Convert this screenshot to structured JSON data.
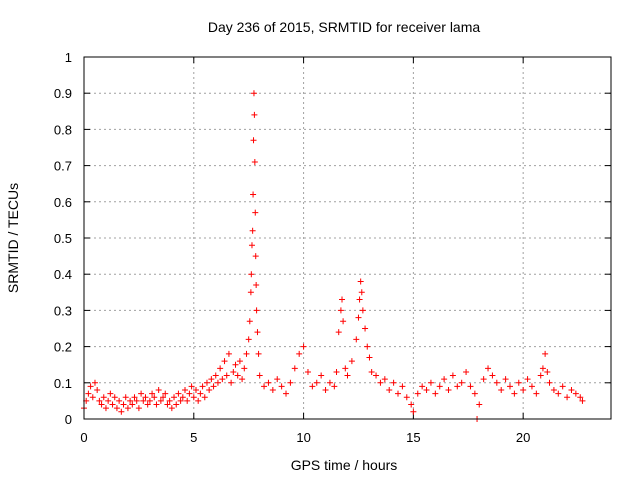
{
  "chart_data": {
    "type": "scatter",
    "title": "Day 236 of 2015, SRMTID for receiver lama",
    "xlabel": "GPS time / hours",
    "ylabel": "SRMTID / TECUs",
    "xlim": [
      0,
      24
    ],
    "ylim": [
      0,
      1
    ],
    "x_ticks": [
      "0",
      "5",
      "10",
      "15",
      "20"
    ],
    "x_tick_values": [
      0,
      5,
      10,
      15,
      20
    ],
    "y_ticks": [
      "0",
      "0.1",
      "0.2",
      "0.3",
      "0.4",
      "0.5",
      "0.6",
      "0.7",
      "0.8",
      "0.9",
      "1"
    ],
    "y_tick_values": [
      0,
      0.1,
      0.2,
      0.3,
      0.4,
      0.5,
      0.6,
      0.7,
      0.8,
      0.9,
      1.0
    ],
    "grid": true,
    "marker": "+",
    "color": "#ff0000",
    "series": [
      {
        "name": "SRMTID",
        "points": [
          [
            0.0,
            0.03
          ],
          [
            0.1,
            0.05
          ],
          [
            0.2,
            0.07
          ],
          [
            0.3,
            0.09
          ],
          [
            0.4,
            0.06
          ],
          [
            0.5,
            0.1
          ],
          [
            0.6,
            0.08
          ],
          [
            0.7,
            0.05
          ],
          [
            0.8,
            0.04
          ],
          [
            0.9,
            0.06
          ],
          [
            1.0,
            0.03
          ],
          [
            1.1,
            0.05
          ],
          [
            1.2,
            0.07
          ],
          [
            1.3,
            0.04
          ],
          [
            1.4,
            0.06
          ],
          [
            1.5,
            0.03
          ],
          [
            1.6,
            0.05
          ],
          [
            1.7,
            0.02
          ],
          [
            1.8,
            0.04
          ],
          [
            1.9,
            0.06
          ],
          [
            2.0,
            0.03
          ],
          [
            2.1,
            0.05
          ],
          [
            2.2,
            0.04
          ],
          [
            2.3,
            0.06
          ],
          [
            2.4,
            0.05
          ],
          [
            2.5,
            0.03
          ],
          [
            2.6,
            0.07
          ],
          [
            2.7,
            0.05
          ],
          [
            2.8,
            0.06
          ],
          [
            2.9,
            0.04
          ],
          [
            3.0,
            0.05
          ],
          [
            3.1,
            0.07
          ],
          [
            3.2,
            0.06
          ],
          [
            3.3,
            0.04
          ],
          [
            3.4,
            0.08
          ],
          [
            3.5,
            0.05
          ],
          [
            3.6,
            0.06
          ],
          [
            3.7,
            0.07
          ],
          [
            3.8,
            0.04
          ],
          [
            3.9,
            0.05
          ],
          [
            4.0,
            0.03
          ],
          [
            4.1,
            0.06
          ],
          [
            4.2,
            0.04
          ],
          [
            4.3,
            0.07
          ],
          [
            4.4,
            0.05
          ],
          [
            4.5,
            0.06
          ],
          [
            4.6,
            0.08
          ],
          [
            4.7,
            0.05
          ],
          [
            4.8,
            0.07
          ],
          [
            4.9,
            0.09
          ],
          [
            5.0,
            0.06
          ],
          [
            5.1,
            0.08
          ],
          [
            5.2,
            0.05
          ],
          [
            5.3,
            0.07
          ],
          [
            5.4,
            0.09
          ],
          [
            5.5,
            0.06
          ],
          [
            5.6,
            0.1
          ],
          [
            5.7,
            0.08
          ],
          [
            5.8,
            0.11
          ],
          [
            5.9,
            0.09
          ],
          [
            6.0,
            0.12
          ],
          [
            6.1,
            0.1
          ],
          [
            6.2,
            0.14
          ],
          [
            6.3,
            0.11
          ],
          [
            6.4,
            0.16
          ],
          [
            6.5,
            0.12
          ],
          [
            6.6,
            0.18
          ],
          [
            6.7,
            0.1
          ],
          [
            6.8,
            0.13
          ],
          [
            6.9,
            0.15
          ],
          [
            7.0,
            0.12
          ],
          [
            7.1,
            0.16
          ],
          [
            7.2,
            0.11
          ],
          [
            7.3,
            0.14
          ],
          [
            7.4,
            0.18
          ],
          [
            7.5,
            0.22
          ],
          [
            7.55,
            0.27
          ],
          [
            7.6,
            0.35
          ],
          [
            7.62,
            0.4
          ],
          [
            7.65,
            0.48
          ],
          [
            7.68,
            0.52
          ],
          [
            7.7,
            0.62
          ],
          [
            7.72,
            0.77
          ],
          [
            7.74,
            0.9
          ],
          [
            7.76,
            0.84
          ],
          [
            7.78,
            0.71
          ],
          [
            7.8,
            0.57
          ],
          [
            7.82,
            0.45
          ],
          [
            7.84,
            0.37
          ],
          [
            7.86,
            0.3
          ],
          [
            7.9,
            0.24
          ],
          [
            7.95,
            0.18
          ],
          [
            8.0,
            0.12
          ],
          [
            8.2,
            0.09
          ],
          [
            8.4,
            0.1
          ],
          [
            8.6,
            0.08
          ],
          [
            8.8,
            0.11
          ],
          [
            9.0,
            0.09
          ],
          [
            9.2,
            0.07
          ],
          [
            9.4,
            0.1
          ],
          [
            9.6,
            0.14
          ],
          [
            9.8,
            0.18
          ],
          [
            10.0,
            0.2
          ],
          [
            10.2,
            0.13
          ],
          [
            10.4,
            0.09
          ],
          [
            10.6,
            0.1
          ],
          [
            10.8,
            0.12
          ],
          [
            11.0,
            0.08
          ],
          [
            11.2,
            0.1
          ],
          [
            11.4,
            0.09
          ],
          [
            11.5,
            0.13
          ],
          [
            11.6,
            0.24
          ],
          [
            11.7,
            0.3
          ],
          [
            11.75,
            0.33
          ],
          [
            11.8,
            0.27
          ],
          [
            11.9,
            0.14
          ],
          [
            12.0,
            0.12
          ],
          [
            12.2,
            0.16
          ],
          [
            12.4,
            0.22
          ],
          [
            12.5,
            0.28
          ],
          [
            12.55,
            0.33
          ],
          [
            12.6,
            0.38
          ],
          [
            12.65,
            0.35
          ],
          [
            12.7,
            0.3
          ],
          [
            12.8,
            0.25
          ],
          [
            12.9,
            0.2
          ],
          [
            13.0,
            0.17
          ],
          [
            13.1,
            0.13
          ],
          [
            13.3,
            0.12
          ],
          [
            13.5,
            0.1
          ],
          [
            13.7,
            0.11
          ],
          [
            13.9,
            0.08
          ],
          [
            14.1,
            0.1
          ],
          [
            14.3,
            0.07
          ],
          [
            14.5,
            0.09
          ],
          [
            14.7,
            0.06
          ],
          [
            14.9,
            0.04
          ],
          [
            15.0,
            0.02
          ],
          [
            15.2,
            0.07
          ],
          [
            15.4,
            0.09
          ],
          [
            15.6,
            0.08
          ],
          [
            15.8,
            0.1
          ],
          [
            16.0,
            0.07
          ],
          [
            16.2,
            0.09
          ],
          [
            16.4,
            0.11
          ],
          [
            16.6,
            0.08
          ],
          [
            16.8,
            0.12
          ],
          [
            17.0,
            0.09
          ],
          [
            17.2,
            0.1
          ],
          [
            17.4,
            0.13
          ],
          [
            17.6,
            0.09
          ],
          [
            17.8,
            0.07
          ],
          [
            17.9,
            0.0
          ],
          [
            18.0,
            0.04
          ],
          [
            18.2,
            0.11
          ],
          [
            18.4,
            0.14
          ],
          [
            18.6,
            0.12
          ],
          [
            18.8,
            0.1
          ],
          [
            19.0,
            0.08
          ],
          [
            19.2,
            0.11
          ],
          [
            19.4,
            0.09
          ],
          [
            19.6,
            0.07
          ],
          [
            19.8,
            0.1
          ],
          [
            20.0,
            0.08
          ],
          [
            20.2,
            0.11
          ],
          [
            20.4,
            0.09
          ],
          [
            20.6,
            0.07
          ],
          [
            20.8,
            0.12
          ],
          [
            20.9,
            0.14
          ],
          [
            21.0,
            0.18
          ],
          [
            21.1,
            0.13
          ],
          [
            21.2,
            0.1
          ],
          [
            21.4,
            0.08
          ],
          [
            21.6,
            0.07
          ],
          [
            21.8,
            0.09
          ],
          [
            22.0,
            0.06
          ],
          [
            22.2,
            0.08
          ],
          [
            22.4,
            0.07
          ],
          [
            22.6,
            0.06
          ],
          [
            22.7,
            0.05
          ]
        ]
      }
    ]
  }
}
